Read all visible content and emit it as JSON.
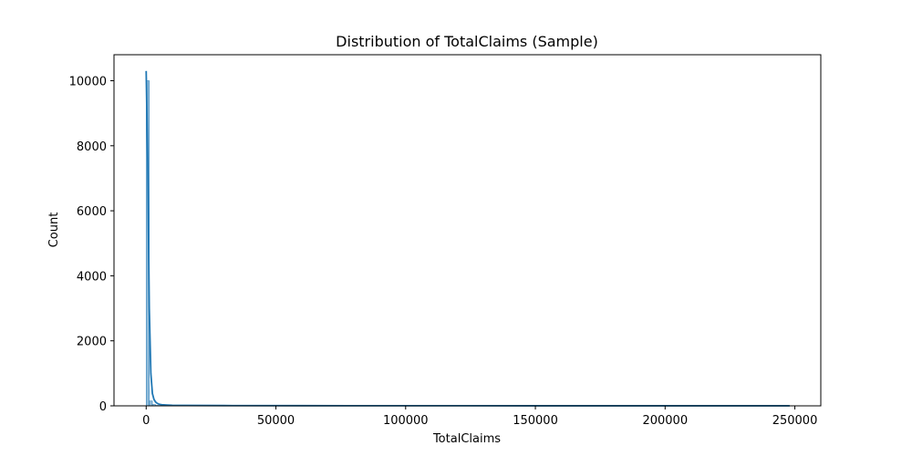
{
  "chart_data": {
    "type": "bar",
    "title": "Distribution of TotalClaims (Sample)",
    "xlabel": "TotalClaims",
    "ylabel": "Count",
    "xlim": [
      -12400,
      260000
    ],
    "ylim": [
      0,
      10800
    ],
    "xticks": [
      0,
      50000,
      100000,
      150000,
      200000,
      250000
    ],
    "xtick_labels": [
      "0",
      "50000",
      "100000",
      "150000",
      "200000",
      "250000"
    ],
    "yticks": [
      0,
      2000,
      4000,
      6000,
      8000,
      10000
    ],
    "ytick_labels": [
      "0",
      "2000",
      "4000",
      "6000",
      "8000",
      "10000"
    ],
    "grid": false,
    "bar_color": "#1f77b4",
    "bars": [
      {
        "x0": 0,
        "x1": 1200,
        "value": 10000
      },
      {
        "x0": 1200,
        "x1": 2400,
        "value": 150
      },
      {
        "x0": 2400,
        "x1": 3600,
        "value": 40
      },
      {
        "x0": 3600,
        "x1": 4800,
        "value": 15
      },
      {
        "x0": 4800,
        "x1": 6000,
        "value": 8
      }
    ],
    "kde": {
      "x": [
        0,
        600,
        1200,
        1800,
        2400,
        3000,
        3600,
        4200,
        5000,
        6000,
        8000,
        10000,
        15000,
        30000,
        60000,
        100000,
        150000,
        200000,
        248000
      ],
      "y": [
        10300,
        7500,
        3000,
        1000,
        380,
        200,
        120,
        80,
        50,
        35,
        25,
        18,
        12,
        8,
        5,
        3,
        2,
        1,
        1
      ]
    }
  }
}
